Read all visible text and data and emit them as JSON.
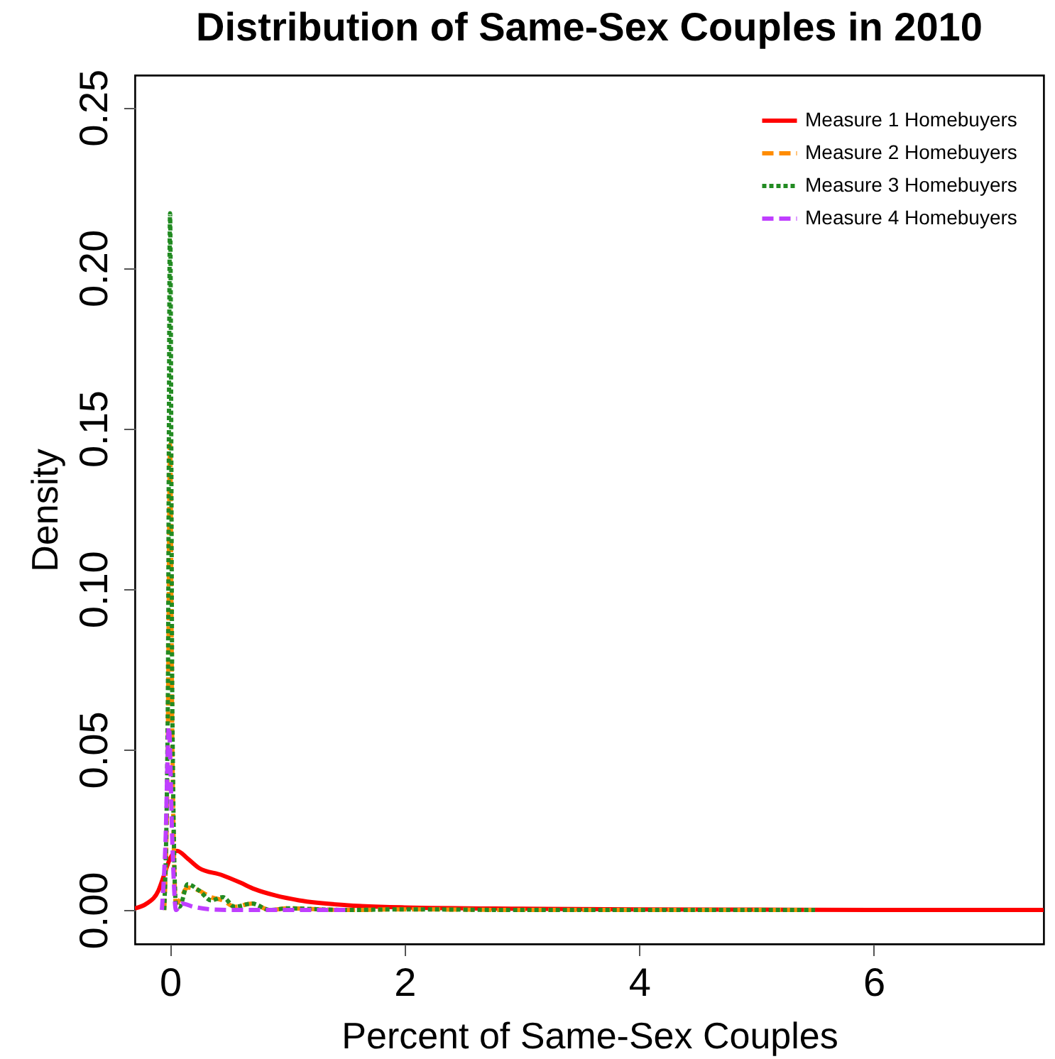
{
  "chart_data": {
    "type": "line",
    "title": "Distribution of Same-Sex Couples in 2010",
    "xlabel": "Percent of Same-Sex Couples",
    "ylabel": "Density",
    "xlim": [
      -0.3,
      7.45
    ],
    "ylim": [
      -0.0106,
      0.26
    ],
    "xticks": [
      0,
      2,
      4,
      6
    ],
    "yticks": [
      {
        "value": 0,
        "label": "0.00"
      },
      {
        "value": 0.05,
        "label": "0.05"
      },
      {
        "value": 0.1,
        "label": "0.10"
      },
      {
        "value": 0.15,
        "label": "0.15"
      },
      {
        "value": 0.2,
        "label": "0.20"
      },
      {
        "value": 0.25,
        "label": "0.25"
      }
    ],
    "grid": false,
    "legend": "top right",
    "marker": "none",
    "series": [
      {
        "name": "Measure 1 Homebuyers",
        "color": "#ff0000",
        "line_style": "solid",
        "x": [
          -0.3,
          -0.2,
          -0.1,
          -0.05,
          0,
          0.06,
          0.15,
          0.25,
          0.44,
          0.6,
          0.72,
          0.9,
          1.1,
          1.5,
          2,
          3,
          4,
          5,
          6,
          7,
          7.45
        ],
        "values": [
          0.0005,
          0.002,
          0.006,
          0.011,
          0.016,
          0.0184,
          0.016,
          0.013,
          0.0109,
          0.0085,
          0.0065,
          0.0045,
          0.003,
          0.0015,
          0.0008,
          0.0004,
          0.0002,
          0.0001,
          0,
          0,
          0
        ]
      },
      {
        "name": "Measure 2 Homebuyers",
        "color": "#ff8c00",
        "line_style": "dashed",
        "x": [
          -0.05,
          -0.02,
          0,
          0.02,
          0.05,
          0.08,
          0.15,
          0.25,
          0.35,
          0.45,
          0.55,
          0.7,
          0.85,
          1.0,
          1.5,
          2,
          3,
          4,
          5.5
        ],
        "values": [
          0,
          0.05,
          0.145,
          0.05,
          0.002,
          0.003,
          0.007,
          0.006,
          0.004,
          0.003,
          0.001,
          0.002,
          0,
          0.0005,
          0,
          0.0002,
          0,
          0,
          0
        ]
      },
      {
        "name": "Measure 3 Homebuyers",
        "color": "#228b22",
        "line_style": "dotted",
        "x": [
          -0.05,
          -0.02,
          0,
          0.02,
          0.05,
          0.08,
          0.15,
          0.25,
          0.35,
          0.45,
          0.55,
          0.7,
          0.85,
          1.0,
          1.5,
          2,
          3,
          4,
          5.5
        ],
        "values": [
          0,
          0.06,
          0.217,
          0.06,
          0.002,
          0.001,
          0.008,
          0.006,
          0.003,
          0.004,
          0.001,
          0.002,
          0,
          0.0005,
          0,
          0.0002,
          0,
          0,
          0
        ]
      },
      {
        "name": "Measure 4 Homebuyers",
        "color": "#bf3eff",
        "line_style": "dashed",
        "x": [
          -0.07,
          -0.04,
          -0.01,
          0.02,
          0.05,
          0.1,
          0.2,
          0.35,
          0.5,
          1,
          1.5
        ],
        "values": [
          0,
          0.02,
          0.057,
          0.02,
          0,
          0.002,
          0.001,
          0.0002,
          0,
          0,
          0
        ]
      }
    ]
  }
}
